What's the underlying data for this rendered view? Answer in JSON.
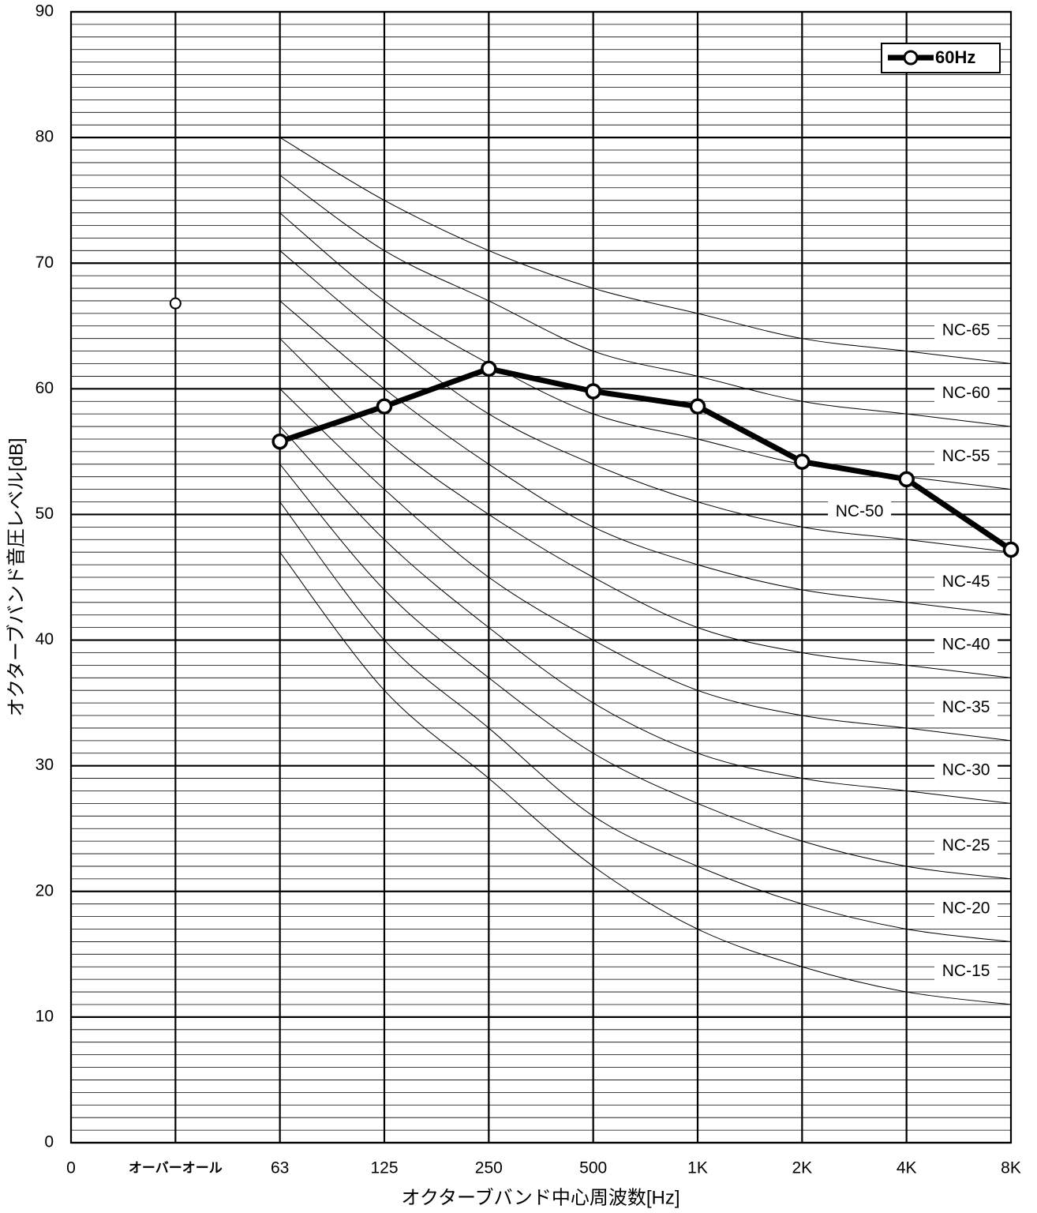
{
  "chart_data": {
    "type": "line",
    "xlabel": "オクターブバンド中心周波数[Hz]",
    "ylabel": "オクターブバンド音圧レベル[dB]",
    "categories": [
      "0",
      "オーバーオール",
      "63",
      "125",
      "250",
      "500",
      "1K",
      "2K",
      "4K",
      "8K"
    ],
    "ylim": [
      0,
      90
    ],
    "yticks": [
      0,
      10,
      20,
      30,
      40,
      50,
      60,
      70,
      80,
      90
    ],
    "minor_grid_step": 1,
    "grid": true,
    "legend": "top-right",
    "series": [
      {
        "name": "60Hz",
        "color": "#000000",
        "values": [
          null,
          null,
          55.8,
          58.6,
          61.6,
          59.8,
          58.6,
          54.2,
          52.8,
          47.2
        ]
      },
      {
        "color": "#000000",
        "values": [
          null,
          66.8,
          null,
          null,
          null,
          null,
          null,
          null,
          null,
          null
        ]
      }
    ],
    "nc_curves": [
      {
        "name": "NC-65",
        "values": [
          null,
          null,
          80,
          75,
          71,
          68,
          66,
          64,
          63,
          62
        ]
      },
      {
        "name": "NC-60",
        "values": [
          null,
          null,
          77,
          71,
          67,
          63,
          61,
          59,
          58,
          57
        ]
      },
      {
        "name": "NC-55",
        "values": [
          null,
          null,
          74,
          67,
          62,
          58,
          56,
          54,
          53,
          52
        ]
      },
      {
        "name": "NC-50",
        "values": [
          null,
          null,
          71,
          64,
          58,
          54,
          51,
          49,
          48,
          47
        ]
      },
      {
        "name": "NC-45",
        "values": [
          null,
          null,
          67,
          60,
          54,
          49,
          46,
          44,
          43,
          42
        ]
      },
      {
        "name": "NC-40",
        "values": [
          null,
          null,
          64,
          56,
          50,
          45,
          41,
          39,
          38,
          37
        ]
      },
      {
        "name": "NC-35",
        "values": [
          null,
          null,
          60,
          52,
          45,
          40,
          36,
          34,
          33,
          32
        ]
      },
      {
        "name": "NC-30",
        "values": [
          null,
          null,
          57,
          48,
          41,
          35,
          31,
          29,
          28,
          27
        ]
      },
      {
        "name": "NC-25",
        "values": [
          null,
          null,
          54,
          44,
          37,
          31,
          27,
          24,
          22,
          21
        ]
      },
      {
        "name": "NC-20",
        "values": [
          null,
          null,
          51,
          40,
          33,
          26,
          22,
          19,
          17,
          16
        ]
      },
      {
        "name": "NC-15",
        "values": [
          null,
          null,
          47,
          36,
          29,
          22,
          17,
          14,
          12,
          11
        ]
      }
    ]
  }
}
